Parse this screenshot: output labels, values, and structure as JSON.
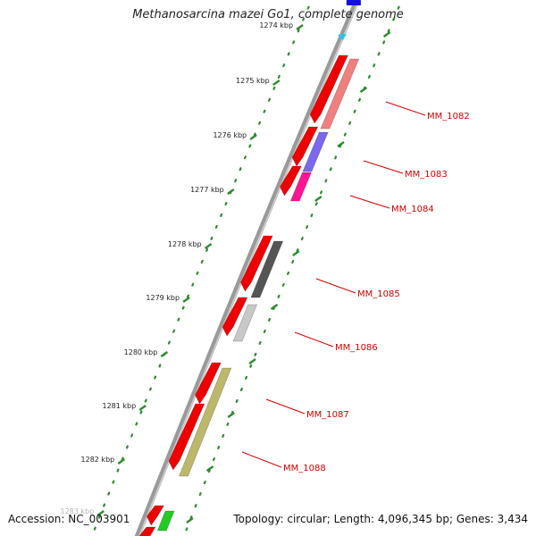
{
  "title": "Methanosarcina mazei Go1, complete genome",
  "footer": {
    "accession": "Accession: NC_003901",
    "summary": "Topology: circular; Length: 4,096,345 bp; Genes: 3,434"
  },
  "colors": {
    "backbone": "#8c8c8c",
    "tick_green": "#2e8b2e",
    "cds_red": "#ee0000",
    "label_red": "#d40000"
  },
  "ruler": {
    "ticks": [
      "1274 kbp",
      "1275 kbp",
      "1276 kbp",
      "1277 kbp",
      "1278 kbp",
      "1279 kbp",
      "1280 kbp",
      "1281 kbp",
      "1282 kbp",
      "1283 kbp"
    ]
  },
  "genes": [
    {
      "name": "MM_1082",
      "color": "#f08080"
    },
    {
      "name": "MM_1083",
      "color": "#7b68ee"
    },
    {
      "name": "MM_1084",
      "color": "#ff1493"
    },
    {
      "name": "MM_1085",
      "color": "#555555"
    },
    {
      "name": "MM_1086",
      "color": "#c8c8c8"
    },
    {
      "name": "MM_1087",
      "color": "#bdb76b"
    },
    {
      "name": "MM_1088",
      "color": "#bdb76b"
    }
  ]
}
